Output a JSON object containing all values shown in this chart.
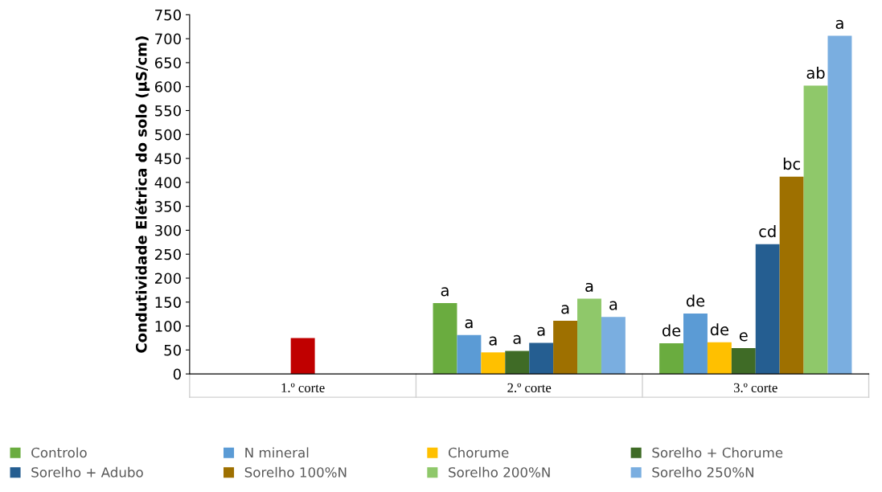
{
  "chart_data": {
    "type": "bar",
    "ylabel": "Condutividade Elétrica do solo (µS/cm)",
    "categories": [
      "1.º corte",
      "2.º corte",
      "3.º corte"
    ],
    "series": [
      {
        "color": "#c00000",
        "values": [
          75,
          null,
          null
        ]
      },
      {
        "name": "Controlo",
        "color": "#6aac3f",
        "values": [
          null,
          148,
          64
        ],
        "value_labels": [
          null,
          "a",
          "de"
        ]
      },
      {
        "name": "N mineral",
        "color": "#5b9bd5",
        "values": [
          null,
          81,
          126
        ],
        "value_labels": [
          null,
          "a",
          "de"
        ]
      },
      {
        "name": "Chorume",
        "color": "#ffc000",
        "values": [
          null,
          45,
          66
        ],
        "value_labels": [
          null,
          "a",
          "de"
        ]
      },
      {
        "name": "Sorelho + Chorume",
        "color": "#3f6b26",
        "values": [
          null,
          48,
          54
        ],
        "value_labels": [
          null,
          "a",
          "e"
        ]
      },
      {
        "name": "Sorelho + Adubo",
        "color": "#255e91",
        "values": [
          null,
          65,
          271
        ],
        "value_labels": [
          null,
          "a",
          "cd"
        ]
      },
      {
        "name": "Sorelho 100%N",
        "color": "#9e7000",
        "values": [
          null,
          111,
          412
        ],
        "value_labels": [
          null,
          "a",
          "bc"
        ]
      },
      {
        "name": "Sorelho 200%N",
        "color": "#8fc86a",
        "values": [
          null,
          157,
          602
        ],
        "value_labels": [
          null,
          "a",
          "ab"
        ]
      },
      {
        "name": "Sorelho 250%N",
        "color": "#7aaee0",
        "values": [
          null,
          119,
          706
        ],
        "value_labels": [
          null,
          "a",
          "a"
        ]
      }
    ],
    "ylim": [
      0,
      750
    ],
    "yticks": [
      0,
      50,
      100,
      150,
      200,
      250,
      300,
      350,
      400,
      450,
      500,
      550,
      600,
      650,
      700,
      750
    ],
    "grid": false,
    "legend": "bottom"
  }
}
